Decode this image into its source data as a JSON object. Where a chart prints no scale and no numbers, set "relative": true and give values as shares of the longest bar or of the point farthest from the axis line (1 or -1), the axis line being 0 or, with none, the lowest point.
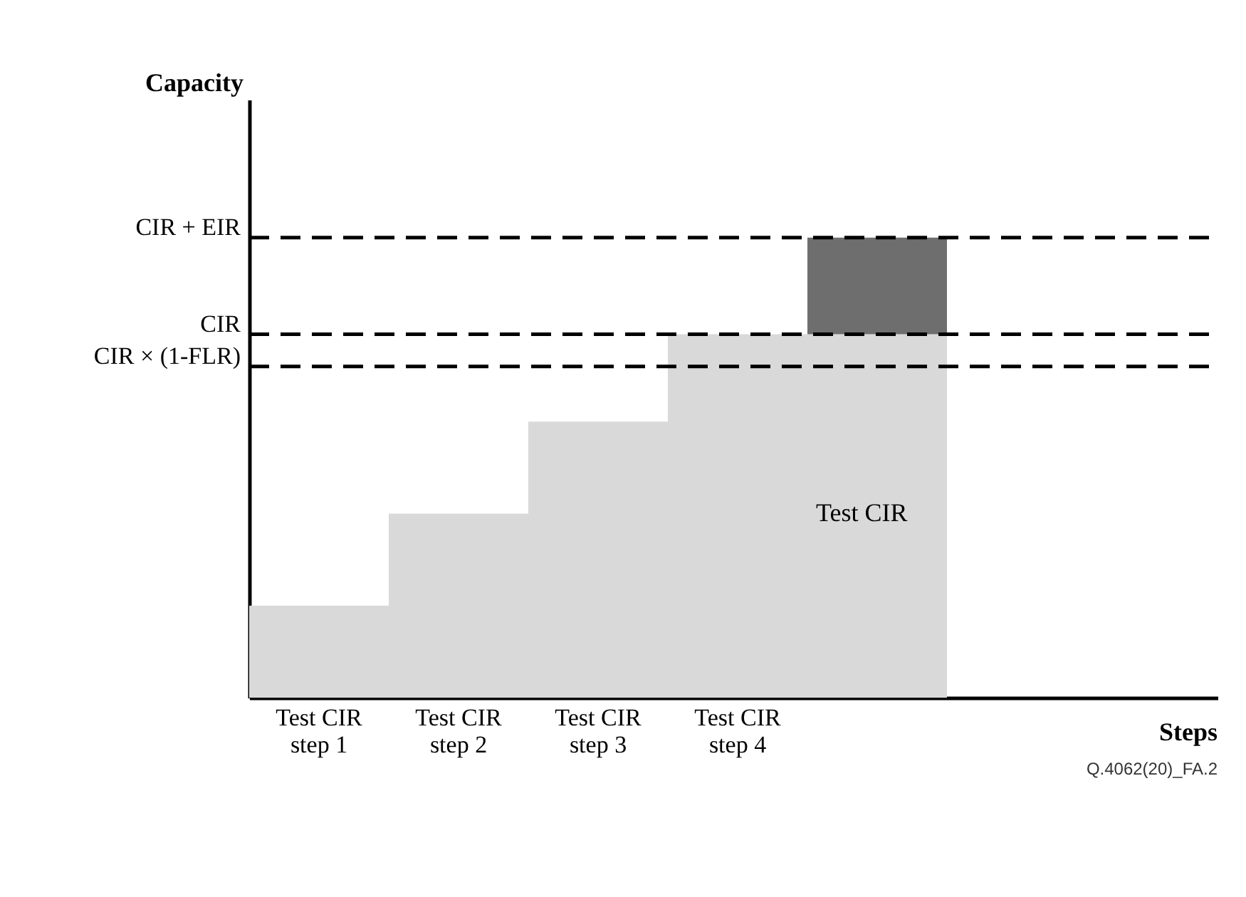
{
  "chart_data": {
    "type": "bar",
    "stacked": true,
    "relative": true,
    "categories": [
      "Test CIR step 1",
      "Test CIR step 2",
      "Test CIR step 3",
      "Test CIR step 4",
      null
    ],
    "series": [
      {
        "color": "#d9d9d9",
        "values": [
          0.2,
          0.4,
          0.6,
          0.79,
          0.79
        ]
      },
      {
        "color": "#6e6e6e",
        "values": [
          null,
          null,
          null,
          null,
          0.21
        ]
      }
    ],
    "ref_lines": [
      {
        "axis": "y",
        "value": 1.0,
        "label": "CIR + EIR",
        "line_style": "dashed"
      },
      {
        "axis": "y",
        "value": 0.79,
        "label": "CIR",
        "line_style": "dashed"
      },
      {
        "axis": "y",
        "value": 0.72,
        "label": "CIR × (1-FLR)",
        "line_style": "dashed"
      }
    ],
    "annotations": [
      "Test CIR",
      "Q.4062(20)_FA.2",
      "Capacity",
      "Steps"
    ],
    "grid": false
  }
}
